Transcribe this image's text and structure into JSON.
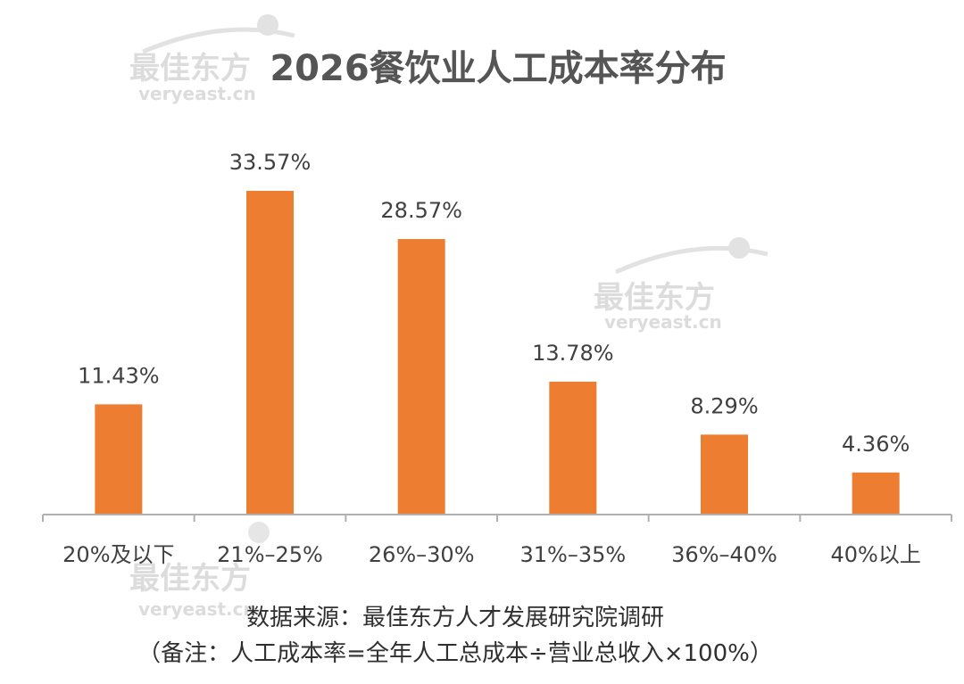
{
  "watermark": {
    "cn": "最佳东方",
    "en": "veryeast.cn"
  },
  "chart_data": {
    "type": "bar",
    "title": "2026餐饮业人工成本率分布",
    "categories": [
      "20%及以下",
      "21%–25%",
      "26%–30%",
      "31%–35%",
      "36%–40%",
      "40%以上"
    ],
    "values": [
      11.43,
      33.57,
      28.57,
      13.78,
      8.29,
      4.36
    ],
    "value_labels": [
      "11.43%",
      "33.57%",
      "28.57%",
      "13.78%",
      "8.29%",
      "4.36%"
    ],
    "ylim": [
      0,
      33.57
    ],
    "bar_color": "#ED7D31",
    "grid": false,
    "legend": "none"
  },
  "source": "数据来源：最佳东方人才发展研究院调研",
  "note": "（备注：人工成本率=全年人工总成本÷营业总收入×100%）"
}
